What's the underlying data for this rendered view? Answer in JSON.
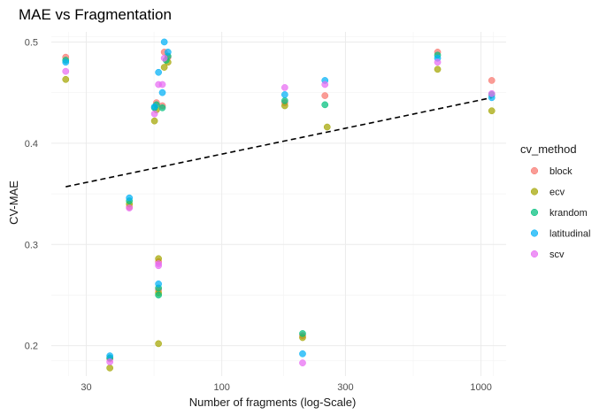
{
  "chart_data": {
    "type": "scatter",
    "title": "MAE vs Fragmentation",
    "xlabel": "Number of fragments (log-Scale)",
    "ylabel": "CV-MAE",
    "x_scale": "log10",
    "xlim": [
      22,
      1250
    ],
    "ylim": [
      0.17,
      0.51
    ],
    "x_ticks": [
      30,
      100,
      300,
      1000
    ],
    "y_ticks": [
      0.2,
      0.3,
      0.4,
      0.5
    ],
    "grid": true,
    "legend": {
      "title": "cv_method",
      "position": "right"
    },
    "trend_line": {
      "style": "dashed",
      "color": "#000000",
      "x": [
        25,
        1100
      ],
      "y": [
        0.357,
        0.445
      ]
    },
    "series": [
      {
        "name": "block",
        "color": "#F8766D",
        "points": [
          [
            25,
            0.485
          ],
          [
            37,
            0.187
          ],
          [
            44,
            0.337
          ],
          [
            56,
            0.44
          ],
          [
            57,
            0.283
          ],
          [
            57,
            0.255
          ],
          [
            59,
            0.437
          ],
          [
            60,
            0.49
          ],
          [
            62,
            0.485
          ],
          [
            175,
            0.44
          ],
          [
            205,
            0.21
          ],
          [
            250,
            0.447
          ],
          [
            680,
            0.49
          ],
          [
            1100,
            0.462
          ]
        ]
      },
      {
        "name": "ecv",
        "color": "#A3A500",
        "points": [
          [
            25,
            0.463
          ],
          [
            37,
            0.178
          ],
          [
            44,
            0.34
          ],
          [
            55,
            0.422
          ],
          [
            56,
            0.433
          ],
          [
            57,
            0.286
          ],
          [
            57,
            0.252
          ],
          [
            57,
            0.202
          ],
          [
            60,
            0.475
          ],
          [
            62,
            0.48
          ],
          [
            175,
            0.437
          ],
          [
            205,
            0.208
          ],
          [
            255,
            0.416
          ],
          [
            680,
            0.473
          ],
          [
            1100,
            0.432
          ]
        ]
      },
      {
        "name": "krandom",
        "color": "#00BF7D",
        "points": [
          [
            25,
            0.482
          ],
          [
            37,
            0.188
          ],
          [
            44,
            0.343
          ],
          [
            55,
            0.435
          ],
          [
            56,
            0.438
          ],
          [
            57,
            0.257
          ],
          [
            57,
            0.25
          ],
          [
            59,
            0.435
          ],
          [
            61,
            0.482
          ],
          [
            62,
            0.486
          ],
          [
            175,
            0.442
          ],
          [
            205,
            0.212
          ],
          [
            250,
            0.438
          ],
          [
            680,
            0.487
          ],
          [
            1100,
            0.448
          ]
        ]
      },
      {
        "name": "latitudinal",
        "color": "#00B0F6",
        "points": [
          [
            25,
            0.48
          ],
          [
            37,
            0.19
          ],
          [
            44,
            0.346
          ],
          [
            55,
            0.436
          ],
          [
            57,
            0.47
          ],
          [
            57,
            0.261
          ],
          [
            59,
            0.45
          ],
          [
            60,
            0.5
          ],
          [
            62,
            0.49
          ],
          [
            175,
            0.448
          ],
          [
            205,
            0.192
          ],
          [
            250,
            0.462
          ],
          [
            680,
            0.484
          ],
          [
            1100,
            0.445
          ]
        ]
      },
      {
        "name": "scv",
        "color": "#E76BF3",
        "points": [
          [
            25,
            0.471
          ],
          [
            37,
            0.184
          ],
          [
            44,
            0.336
          ],
          [
            55,
            0.429
          ],
          [
            57,
            0.458
          ],
          [
            57,
            0.281
          ],
          [
            57,
            0.279
          ],
          [
            59,
            0.458
          ],
          [
            60,
            0.484
          ],
          [
            175,
            0.455
          ],
          [
            205,
            0.183
          ],
          [
            250,
            0.458
          ],
          [
            680,
            0.48
          ],
          [
            1100,
            0.449
          ]
        ]
      }
    ]
  }
}
